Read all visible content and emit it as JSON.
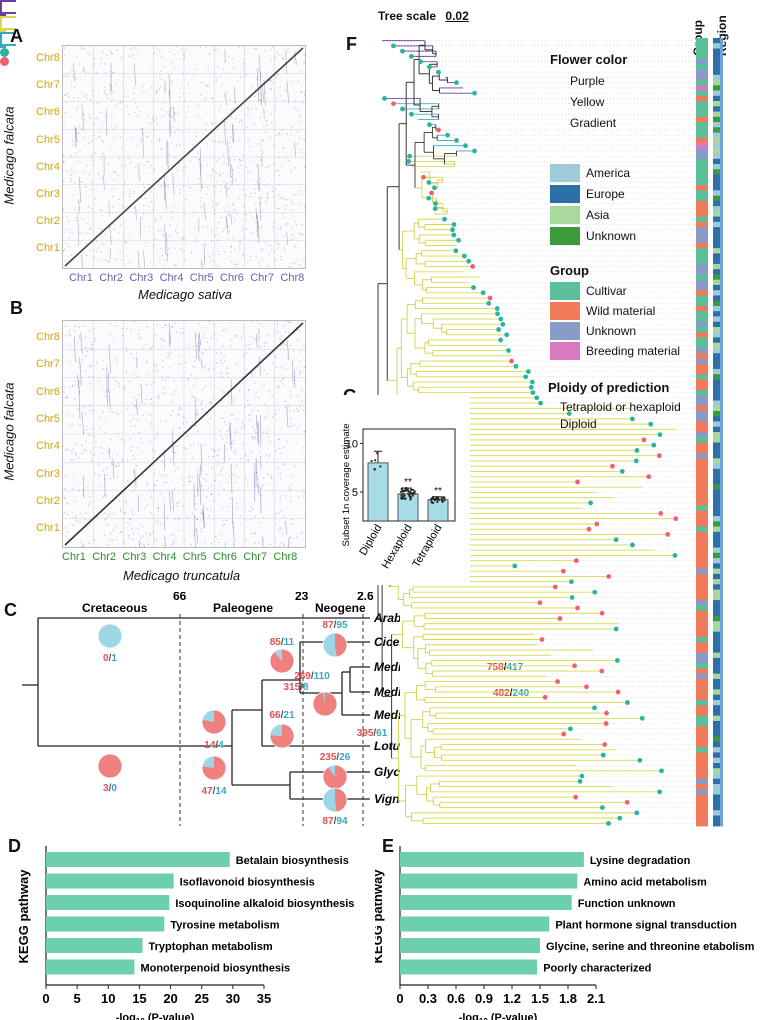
{
  "panels": {
    "A": "A",
    "B": "B",
    "C": "C",
    "D": "D",
    "E": "E",
    "F": "F",
    "G": "G"
  },
  "panelA": {
    "y_chr": [
      "Chr8",
      "Chr7",
      "Chr6",
      "Chr5",
      "Chr4",
      "Chr3",
      "Chr2",
      "Chr1"
    ],
    "x_chr": [
      "Chr1",
      "Chr2",
      "Chr3",
      "Chr4",
      "Chr5",
      "Chr6",
      "Chr7",
      "Chr8"
    ],
    "ylabel": "Medicago falcata",
    "xlabel": "Medicago sativa",
    "dot_color": "#7b5d86"
  },
  "panelB": {
    "y_chr": [
      "Chr8",
      "Chr7",
      "Chr6",
      "Chr5",
      "Chr4",
      "Chr3",
      "Chr2",
      "Chr1"
    ],
    "x_chr": [
      "Chr1",
      "Chr2",
      "Chr3",
      "Chr4",
      "Chr5",
      "Chr6",
      "Chr7",
      "Chr8"
    ],
    "ylabel": "Medicago falcata",
    "xlabel": "Medicago truncatula",
    "dot_color": "#5a4fa8"
  },
  "panelC": {
    "eras": [
      "Cretaceous",
      "Paleogene",
      "Neogene"
    ],
    "times": [
      "66",
      "23",
      "2.6"
    ],
    "species": [
      "Arabidopsis thaliana",
      "Cicer arietinum",
      "Medicago sativa",
      "Medicago falcata",
      "Medicago truncatula",
      "Lotus japonicus",
      "Glycine max",
      "Vigna radiata"
    ],
    "sativa_counts": {
      "gain": "758",
      "loss": "417"
    },
    "falcata_counts": {
      "gain": "482",
      "loss": "240"
    },
    "pies": [
      {
        "gain": "0",
        "loss": "1"
      },
      {
        "gain": "3",
        "loss": "0"
      },
      {
        "gain": "14",
        "loss": "4"
      },
      {
        "gain": "47",
        "loss": "14"
      },
      {
        "gain": "85",
        "loss": "11"
      },
      {
        "gain": "66",
        "loss": "21"
      },
      {
        "gain": "87",
        "loss": "95"
      },
      {
        "gain": "269",
        "loss": "110"
      },
      {
        "gain": "315",
        "loss": "8"
      },
      {
        "gain": "395",
        "loss": "61"
      },
      {
        "gain": "235",
        "loss": "26"
      },
      {
        "gain": "87",
        "loss": "94"
      }
    ],
    "colors": {
      "gain": "#f08080",
      "loss": "#9fd6e6"
    }
  },
  "panelD": {
    "ylabel": "KEGG pathway",
    "xlabel": "-log10(P-value)",
    "xlabel_main": "-log",
    "xlabel_sub": "10",
    "xlabel_rest": " (P-value)",
    "ticks": [
      "0",
      "5",
      "10",
      "15",
      "20",
      "25",
      "30",
      "35"
    ],
    "xlim": [
      0,
      35
    ],
    "bars": [
      {
        "label": "Betalain biosynthesis",
        "value": 29.5
      },
      {
        "label": "Isoflavonoid biosynthesis",
        "value": 20.5
      },
      {
        "label": "Isoquinoline alkaloid biosynthesis",
        "value": 19.8
      },
      {
        "label": "Tyrosine metabolism",
        "value": 19.0
      },
      {
        "label": "Tryptophan metabolism",
        "value": 15.5
      },
      {
        "label": "Monoterpenoid biosynthesis",
        "value": 14.2
      }
    ],
    "color": "#6ecfae"
  },
  "panelE": {
    "ylabel": "KEGG pathway",
    "xlabel_main": "-log",
    "xlabel_sub": "10",
    "xlabel_rest": " (P-value)",
    "ticks": [
      "0",
      "0.3",
      "0.6",
      "0.9",
      "1.2",
      "1.5",
      "1.8",
      "2.1"
    ],
    "xlim": [
      0,
      2.1
    ],
    "bars": [
      {
        "label": "Lysine degradation",
        "value": 1.97
      },
      {
        "label": "Amino acid metabolism",
        "value": 1.9
      },
      {
        "label": "Function unknown",
        "value": 1.84
      },
      {
        "label": "Plant hormone signal transduction",
        "value": 1.6
      },
      {
        "label": "Glycine, serine and threonine etabolism",
        "value": 1.5
      },
      {
        "label": "Poorly characterized",
        "value": 1.47
      }
    ],
    "color": "#6ecfae"
  },
  "panelF": {
    "tree_scale_label": "Tree scale",
    "tree_scale_value": "0.02",
    "col_group": "Group",
    "col_region": "Region",
    "legend_flower_title": "Flower color",
    "flower": [
      {
        "label": "Purple",
        "color": "#6a3d9a"
      },
      {
        "label": "Yellow",
        "color": "#d9d94a"
      },
      {
        "label": "Gradient",
        "color": "#3aa6c0"
      }
    ],
    "region": [
      {
        "label": "America",
        "color": "#9fcbd9"
      },
      {
        "label": "Europe",
        "color": "#2f6fa8"
      },
      {
        "label": "Asia",
        "color": "#a8d89a"
      },
      {
        "label": "Unknown",
        "color": "#3b9a3b"
      }
    ],
    "group_title": "Group",
    "group": [
      {
        "label": "Cultivar",
        "color": "#5bbf9a"
      },
      {
        "label": "Wild material",
        "color": "#f07a5a"
      },
      {
        "label": "Unknown",
        "color": "#8a9ac8"
      },
      {
        "label": "Breeding material",
        "color": "#d67bc0"
      }
    ],
    "ploidy_title": "Ploidy of prediction",
    "ploidy": [
      {
        "label": "Tetraploid or hexaploid",
        "color": "#2ab3a0"
      },
      {
        "label": "Diploid",
        "color": "#f06070"
      }
    ]
  },
  "panelG": {
    "ylabel": "Subset 1n coverage estimate",
    "yticks": [
      "5",
      "10"
    ],
    "ylim": [
      2,
      11.5
    ],
    "categories": [
      "Diploid",
      "Hexaploid",
      "Tetraploid"
    ],
    "values": [
      8.0,
      4.8,
      4.2
    ],
    "errors": [
      1.2,
      0.6,
      0.3
    ],
    "signif": [
      "",
      "**",
      "**"
    ],
    "color": "#a8dde8"
  }
}
